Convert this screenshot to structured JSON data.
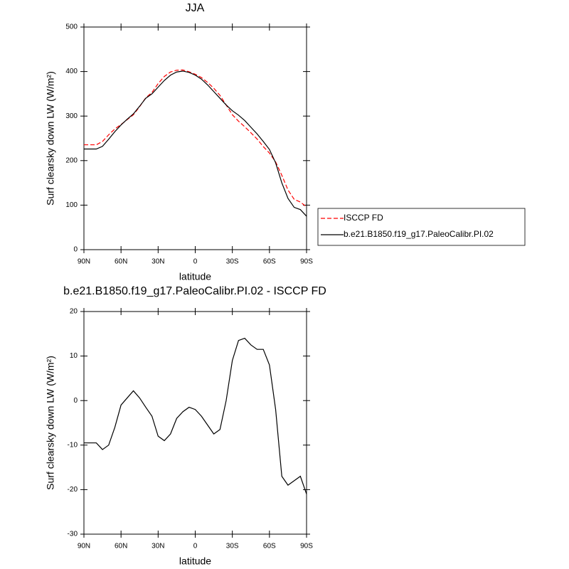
{
  "chart_data": [
    {
      "type": "line",
      "title": "JJA",
      "xlabel": "latitude",
      "ylabel": "Surf clearsky down LW (W/m²)",
      "x": [
        90,
        85,
        80,
        75,
        70,
        65,
        60,
        55,
        50,
        45,
        40,
        35,
        30,
        25,
        20,
        15,
        10,
        5,
        0,
        -5,
        -10,
        -15,
        -20,
        -25,
        -30,
        -35,
        -40,
        -45,
        -50,
        -55,
        -60,
        -65,
        -70,
        -75,
        -80,
        -85,
        -90
      ],
      "series": [
        {
          "name": "ISCCP FD",
          "color": "#ff0000",
          "dash": true,
          "values": [
            235.5,
            235.5,
            235.5,
            243,
            258,
            271,
            281,
            292,
            303,
            321,
            341,
            353,
            373,
            389,
            399,
            403,
            403.5,
            399.5,
            394,
            386.5,
            375.5,
            362.5,
            346.5,
            325,
            303,
            288.5,
            276,
            262.5,
            248.5,
            231.5,
            217,
            197,
            167,
            134,
            113,
            107,
            96
          ]
        },
        {
          "name": "b.e21.B1850.f19_g17.PaleoCalibr.PI.02",
          "color": "#000000",
          "dash": false,
          "values": [
            226,
            226,
            226,
            232,
            248,
            265,
            280,
            293,
            305,
            322,
            340,
            350,
            365,
            380,
            392,
            399,
            401,
            398,
            392,
            383,
            370,
            355,
            340,
            325,
            312,
            302,
            290,
            275,
            260,
            243,
            225,
            195,
            150,
            115,
            95,
            90,
            75
          ]
        }
      ],
      "xlim": [
        90,
        -90
      ],
      "xticks": [
        {
          "value": 90,
          "label": "90N"
        },
        {
          "value": 60,
          "label": "60N"
        },
        {
          "value": 30,
          "label": "30N"
        },
        0,
        {
          "value": -30,
          "label": "30S"
        },
        {
          "value": -60,
          "label": "60S"
        },
        {
          "value": -90,
          "label": "90S"
        }
      ],
      "ylim": [
        0,
        500
      ],
      "yticks": [
        0,
        100,
        200,
        300,
        400,
        500
      ],
      "legend": "right"
    },
    {
      "type": "line",
      "title": "b.e21.B1850.f19_g17.PaleoCalibr.PI.02 - ISCCP FD",
      "xlabel": "latitude",
      "ylabel": "Surf clearsky down LW (W/m²)",
      "x": [
        90,
        85,
        80,
        75,
        70,
        65,
        60,
        55,
        50,
        45,
        40,
        35,
        30,
        25,
        20,
        15,
        10,
        5,
        0,
        -5,
        -10,
        -15,
        -20,
        -25,
        -30,
        -35,
        -40,
        -45,
        -50,
        -55,
        -60,
        -65,
        -70,
        -75,
        -80,
        -85,
        -90
      ],
      "series": [
        {
          "color": "#000000",
          "dash": false,
          "values": [
            -9.5,
            -9.5,
            -9.5,
            -11,
            -10,
            -6,
            -1,
            0.6,
            2.2,
            0.6,
            -1.5,
            -3.5,
            -8,
            -9,
            -7.5,
            -4,
            -2.5,
            -1.5,
            -2,
            -3.5,
            -5.5,
            -7.5,
            -6.5,
            0,
            9,
            13.5,
            14,
            12.5,
            11.5,
            11.5,
            8,
            -2,
            -17,
            -19,
            -18,
            -17,
            -21
          ]
        }
      ],
      "xlim": [
        90,
        -90
      ],
      "xticks": [
        {
          "value": 90,
          "label": "90N"
        },
        {
          "value": 60,
          "label": "60N"
        },
        {
          "value": 30,
          "label": "30N"
        },
        0,
        {
          "value": -30,
          "label": "30S"
        },
        {
          "value": -60,
          "label": "60S"
        },
        {
          "value": -90,
          "label": "90S"
        }
      ],
      "ylim": [
        -30,
        20
      ],
      "yticks": [
        -30,
        -20,
        -10,
        0,
        10,
        20
      ]
    }
  ]
}
